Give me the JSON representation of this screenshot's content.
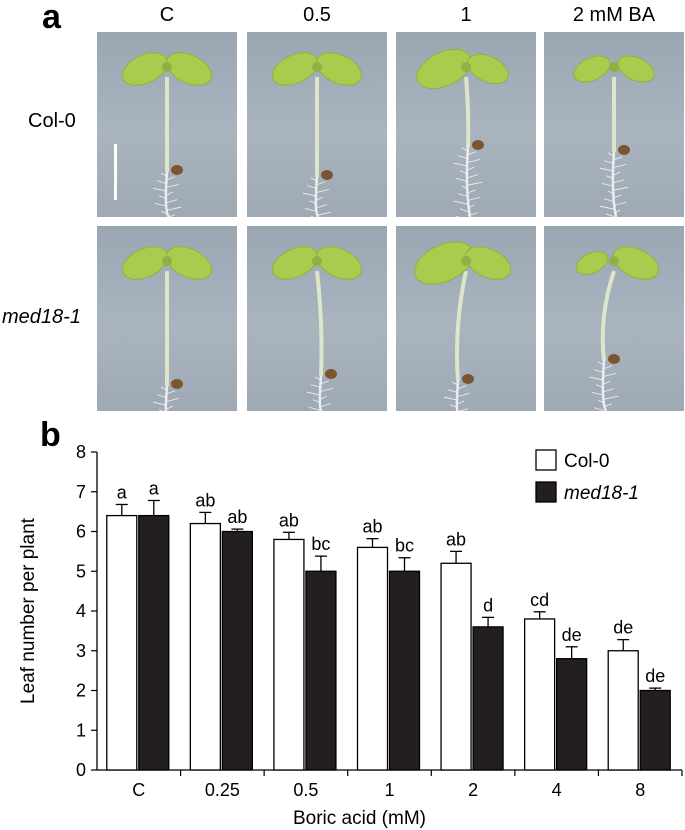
{
  "panel_a": {
    "letter": "a",
    "columns": [
      "C",
      "0.5",
      "1",
      "2 mM BA"
    ],
    "rows": [
      "Col-0",
      "med18-1"
    ]
  },
  "panel_b": {
    "letter": "b"
  },
  "chart_data": {
    "type": "bar",
    "categories": [
      "C",
      "0.25",
      "0.5",
      "1",
      "2",
      "4",
      "8"
    ],
    "xlabel": "Boric acid (mM)",
    "ylabel": "Leaf number per plant",
    "ylim": [
      0,
      8
    ],
    "yticks": [
      "0",
      "1",
      "2",
      "3",
      "4",
      "5",
      "6",
      "7",
      "8"
    ],
    "legend_position": "top-right",
    "series": [
      {
        "name": "Col-0",
        "color": "#ffffff",
        "values": [
          6.4,
          6.2,
          5.8,
          5.6,
          5.2,
          3.8,
          3.0
        ],
        "errors": [
          0.28,
          0.28,
          0.18,
          0.22,
          0.3,
          0.18,
          0.28
        ],
        "letters": [
          "a",
          "ab",
          "ab",
          "ab",
          "ab",
          "cd",
          "de"
        ]
      },
      {
        "name": "med18-1",
        "color": "#231f20",
        "values": [
          6.4,
          6.0,
          5.0,
          5.0,
          3.6,
          2.8,
          2.0
        ],
        "errors": [
          0.38,
          0.06,
          0.38,
          0.34,
          0.24,
          0.3,
          0.06
        ],
        "letters": [
          "a",
          "ab",
          "bc",
          "bc",
          "d",
          "de",
          "de"
        ]
      }
    ]
  }
}
